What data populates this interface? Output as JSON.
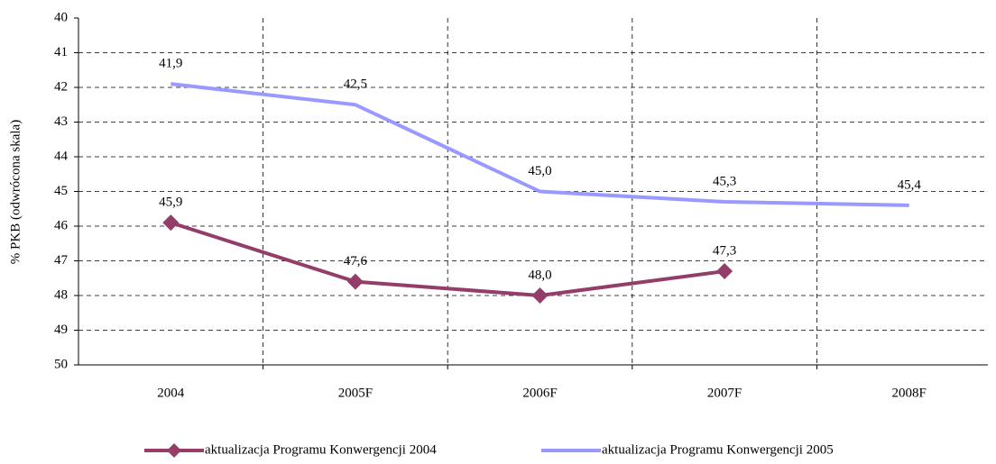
{
  "chart_data": {
    "type": "line",
    "y_label": "% PKB (odwrócona skala)",
    "categories": [
      "2004",
      "2005F",
      "2006F",
      "2007F",
      "2008F"
    ],
    "series": [
      {
        "name": "aktualizacja Programu Konwergencji 2004",
        "color": "#943d68",
        "marker": "diamond",
        "values": [
          45.9,
          47.6,
          48.0,
          47.3,
          null
        ],
        "value_labels": [
          "45,9",
          "47,6",
          "48,0",
          "47,3",
          null
        ]
      },
      {
        "name": "aktualizacja Programu Konwergencji 2005",
        "color": "#9999ff",
        "marker": "none",
        "values": [
          41.9,
          42.5,
          45.0,
          45.3,
          45.4
        ],
        "value_labels": [
          "41,9",
          "42,5",
          "45,0",
          "45,3",
          "45,4"
        ]
      }
    ],
    "ylim": [
      40,
      50
    ],
    "y_inverted": true,
    "yticks": [
      40,
      41,
      42,
      43,
      44,
      45,
      46,
      47,
      48,
      49,
      50
    ],
    "grid": true
  }
}
